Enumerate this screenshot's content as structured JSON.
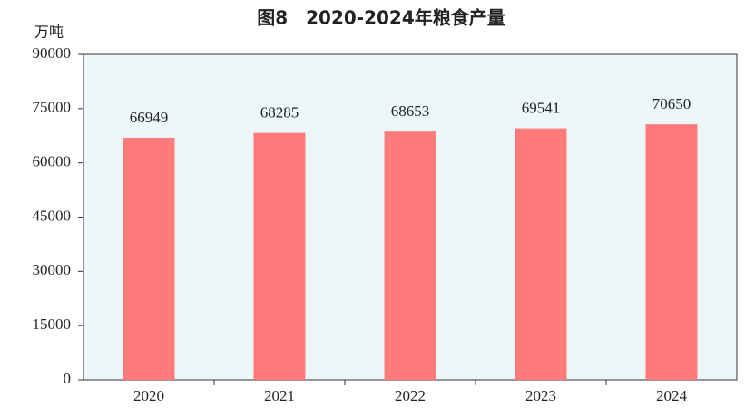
{
  "chart_data": {
    "type": "bar",
    "title": "图8　2020-2024年粮食产量",
    "y_axis_label": "万吨",
    "categories": [
      "2020",
      "2021",
      "2022",
      "2023",
      "2024"
    ],
    "values": [
      66949,
      68285,
      68653,
      69541,
      70650
    ],
    "color": "#ff7b7b",
    "ylim": [
      0,
      90000
    ],
    "yticks": [
      0,
      15000,
      30000,
      45000,
      60000,
      75000,
      90000
    ],
    "grid": false
  }
}
